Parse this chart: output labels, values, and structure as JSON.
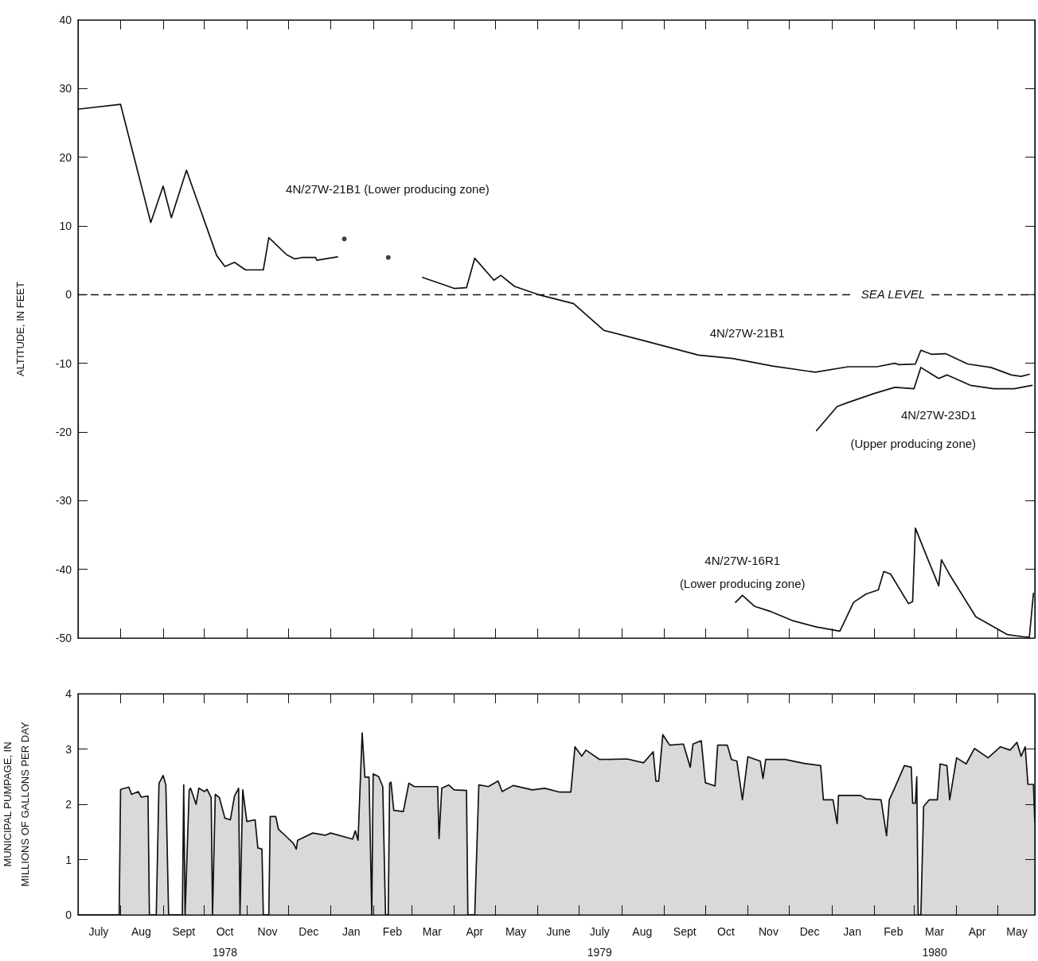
{
  "chart_data": [
    {
      "type": "line",
      "ylabel": "ALTITUDE, IN FEET",
      "ylim": [
        -50,
        40
      ],
      "yticks": [
        -50,
        -40,
        -30,
        -20,
        -10,
        0,
        10,
        20,
        30,
        40
      ],
      "xlim": [
        "1978-07-01",
        "1980-05-28"
      ],
      "tick_labels": "y",
      "xticks": [
        {
          "value": "1978-08-01",
          "label": null
        },
        {
          "value": "1978-09-01",
          "label": null
        },
        {
          "value": "1978-10-01",
          "label": null
        },
        {
          "value": "1978-11-01",
          "label": null
        },
        {
          "value": "1978-12-01",
          "label": null
        },
        {
          "value": "1979-01-01",
          "label": null
        },
        {
          "value": "1979-02-01",
          "label": null
        },
        {
          "value": "1979-03-01",
          "label": null
        },
        {
          "value": "1979-04-01",
          "label": null
        },
        {
          "value": "1979-05-01",
          "label": null
        },
        {
          "value": "1979-06-01",
          "label": null
        },
        {
          "value": "1979-07-01",
          "label": null
        },
        {
          "value": "1979-08-01",
          "label": null
        },
        {
          "value": "1979-09-01",
          "label": null
        },
        {
          "value": "1979-10-01",
          "label": null
        },
        {
          "value": "1979-11-01",
          "label": null
        },
        {
          "value": "1979-12-01",
          "label": null
        },
        {
          "value": "1980-01-01",
          "label": null
        },
        {
          "value": "1980-02-01",
          "label": null
        },
        {
          "value": "1980-03-01",
          "label": null
        },
        {
          "value": "1980-04-01",
          "label": null
        },
        {
          "value": "1980-05-01",
          "label": null
        }
      ],
      "series": [
        {
          "name": "4N/27W-21B1",
          "color": "#111111",
          "x": [
            "1978-07-01",
            "1978-08-01",
            "1978-08-23",
            "1978-09-01",
            "1978-09-07",
            "1978-09-18",
            "1978-10-10",
            "1978-10-16",
            "1978-10-23",
            "1978-10-31",
            "1978-11-13",
            "1978-11-17",
            "1978-11-30",
            "1978-12-06",
            "1978-12-11",
            "1978-12-21",
            "1978-12-22",
            "1979-01-06",
            "1979-02-25",
            "1979-03-09",
            "1979-03-25",
            "1979-04-01",
            "1979-04-10",
            "1979-04-16",
            "1979-04-30",
            "1979-05-05",
            "1979-05-15",
            "1979-06-03",
            "1979-06-27",
            "1979-07-19",
            "1979-08-17",
            "1979-09-26",
            "1979-10-21",
            "1979-11-19",
            "1979-12-20",
            "1980-01-13",
            "1980-02-03",
            "1980-02-16",
            "1980-02-19",
            "1980-03-02",
            "1980-03-06",
            "1980-03-14",
            "1980-03-24",
            "1980-04-09",
            "1980-04-26",
            "1980-05-11",
            "1980-05-18",
            "1980-05-24"
          ],
          "values": [
            27.0,
            27.7,
            10.5,
            15.8,
            11.2,
            18.1,
            5.7,
            4.1,
            4.7,
            3.6,
            3.6,
            8.3,
            5.8,
            5.2,
            5.4,
            5.4,
            5.0,
            5.5,
            null,
            2.5,
            1.4,
            0.9,
            1.0,
            5.3,
            2.1,
            2.8,
            1.2,
            -0.1,
            -1.3,
            -5.2,
            -6.7,
            -8.8,
            -9.3,
            -10.4,
            -11.3,
            -10.5,
            -10.5,
            -10.0,
            -10.2,
            -10.1,
            -8.1,
            -8.7,
            -8.6,
            -10.1,
            -10.6,
            -11.7,
            -11.9,
            -11.6
          ]
        },
        {
          "name": "4N/27W-23D1",
          "color": "#111111",
          "x": [
            "1979-12-21",
            "1980-01-05",
            "1980-01-13",
            "1980-02-01",
            "1980-02-16",
            "1980-03-01",
            "1980-03-06",
            "1980-03-14",
            "1980-03-19",
            "1980-03-25",
            "1980-04-11",
            "1980-04-28",
            "1980-05-13",
            "1980-05-26"
          ],
          "values": [
            -19.8,
            -16.3,
            -15.7,
            -14.4,
            -13.5,
            -13.7,
            -10.6,
            -11.6,
            -12.2,
            -11.7,
            -13.2,
            -13.7,
            -13.7,
            -13.2
          ]
        },
        {
          "name": "4N/27W-16R1",
          "color": "#111111",
          "x": [
            "1979-10-23",
            "1979-10-28",
            "1979-11-06",
            "1979-11-17",
            "1979-12-04",
            "1979-12-21",
            "1980-01-07",
            "1980-01-17",
            "1980-01-26",
            "1980-02-04",
            "1980-02-08",
            "1980-02-13",
            "1980-02-26",
            "1980-02-29",
            "1980-03-02",
            "1980-03-10",
            "1980-03-19",
            "1980-03-21",
            "1980-03-27",
            "1980-04-15",
            "1980-05-08",
            "1980-05-19",
            "1980-05-24",
            "1980-05-27"
          ],
          "values": [
            -44.8,
            -43.8,
            -45.4,
            -46.1,
            -47.5,
            -48.4,
            -49.0,
            -44.8,
            -43.6,
            -43.0,
            -40.3,
            -40.7,
            -45.0,
            -44.7,
            -34.0,
            -38.0,
            -42.4,
            -38.6,
            -40.8,
            -46.9,
            -49.5,
            -49.8,
            -49.9,
            -43.5
          ]
        },
        {
          "type": "scatter",
          "marker": "circle",
          "color": "#111111",
          "x": [
            "1979-01-11",
            "1979-02-12"
          ],
          "values": [
            8.1,
            5.4
          ]
        }
      ],
      "ref_lines": [
        {
          "axis": "y",
          "value": 0,
          "label": "SEA LEVEL",
          "color": "#111111",
          "line_style": "dashed"
        }
      ],
      "annotations": [
        "4N/27W-21B1 (Lower producing zone)",
        "(Upper producing zone)",
        "(Lower producing zone)"
      ]
    },
    {
      "type": "area",
      "ylabel": "MUNICIPAL PUMPAGE, IN\nMILLIONS OF GALLONS PER DAY",
      "ylim": [
        0,
        4
      ],
      "yticks": [
        0,
        1,
        2,
        3,
        4
      ],
      "xlim": [
        "1978-07-01",
        "1980-05-28"
      ],
      "xticks": [
        {
          "value": "1978-07-16",
          "label": "July"
        },
        {
          "value": "1978-08-01",
          "label": null
        },
        {
          "value": "1978-08-16",
          "label": "Aug"
        },
        {
          "value": "1978-09-01",
          "label": null
        },
        {
          "value": "1978-09-16",
          "label": "Sept"
        },
        {
          "value": "1978-10-01",
          "label": null
        },
        {
          "value": "1978-10-16",
          "label": "Oct\n1978"
        },
        {
          "value": "1978-11-01",
          "label": null
        },
        {
          "value": "1978-11-16",
          "label": "Nov"
        },
        {
          "value": "1978-12-01",
          "label": null
        },
        {
          "value": "1978-12-16",
          "label": "Dec"
        },
        {
          "value": "1979-01-01",
          "label": null
        },
        {
          "value": "1979-01-16",
          "label": "Jan"
        },
        {
          "value": "1979-02-01",
          "label": null
        },
        {
          "value": "1979-02-15",
          "label": "Feb"
        },
        {
          "value": "1979-03-01",
          "label": null
        },
        {
          "value": "1979-03-16",
          "label": "Mar"
        },
        {
          "value": "1979-04-01",
          "label": null
        },
        {
          "value": "1979-04-16",
          "label": "Apr"
        },
        {
          "value": "1979-05-01",
          "label": null
        },
        {
          "value": "1979-05-16",
          "label": "May"
        },
        {
          "value": "1979-06-01",
          "label": null
        },
        {
          "value": "1979-06-16",
          "label": "June"
        },
        {
          "value": "1979-07-01",
          "label": null
        },
        {
          "value": "1979-07-16",
          "label": "July\n1979"
        },
        {
          "value": "1979-08-01",
          "label": null
        },
        {
          "value": "1979-08-16",
          "label": "Aug"
        },
        {
          "value": "1979-09-01",
          "label": null
        },
        {
          "value": "1979-09-16",
          "label": "Sept"
        },
        {
          "value": "1979-10-01",
          "label": null
        },
        {
          "value": "1979-10-16",
          "label": "Oct"
        },
        {
          "value": "1979-11-01",
          "label": null
        },
        {
          "value": "1979-11-16",
          "label": "Nov"
        },
        {
          "value": "1979-12-01",
          "label": null
        },
        {
          "value": "1979-12-16",
          "label": "Dec"
        },
        {
          "value": "1980-01-01",
          "label": null
        },
        {
          "value": "1980-01-16",
          "label": "Jan"
        },
        {
          "value": "1980-02-01",
          "label": null
        },
        {
          "value": "1980-02-15",
          "label": "Feb"
        },
        {
          "value": "1980-03-01",
          "label": null
        },
        {
          "value": "1980-03-16",
          "label": "Mar\n1980"
        },
        {
          "value": "1980-04-01",
          "label": null
        },
        {
          "value": "1980-04-16",
          "label": "Apr"
        },
        {
          "value": "1980-05-01",
          "label": null
        },
        {
          "value": "1980-05-15",
          "label": "May"
        }
      ],
      "series": [
        {
          "color": "#111111",
          "x": [
            "1978-07-01",
            "1978-07-31",
            "1978-08-01",
            "1978-08-07",
            "1978-08-09",
            "1978-08-14",
            "1978-08-16",
            "1978-08-21",
            "1978-08-22",
            "1978-08-27",
            "1978-08-29",
            "1978-09-01",
            "1978-09-03",
            "1978-09-05",
            "1978-09-15",
            "1978-09-16",
            "1978-09-17",
            "1978-09-20",
            "1978-09-21",
            "1978-09-25",
            "1978-09-27",
            "1978-10-01",
            "1978-10-03",
            "1978-10-06",
            "1978-10-07",
            "1978-10-09",
            "1978-10-12",
            "1978-10-16",
            "1978-10-20",
            "1978-10-23",
            "1978-10-26",
            "1978-10-27",
            "1978-10-29",
            "1978-11-01",
            "1978-11-07",
            "1978-11-09",
            "1978-11-12",
            "1978-11-13",
            "1978-11-17",
            "1978-11-18",
            "1978-11-22",
            "1978-11-24",
            "1978-11-30",
            "1978-12-05",
            "1978-12-07",
            "1978-12-08",
            "1978-12-19",
            "1978-12-28",
            "1979-01-01",
            "1979-01-17",
            "1979-01-19",
            "1979-01-21",
            "1979-01-24",
            "1979-01-26",
            "1979-01-29",
            "1979-01-31",
            "1979-02-01",
            "1979-02-05",
            "1979-02-08",
            "1979-02-10",
            "1979-02-12",
            "1979-02-13",
            "1979-02-14",
            "1979-02-16",
            "1979-02-23",
            "1979-02-27",
            "1979-03-03",
            "1979-03-20",
            "1979-03-21",
            "1979-03-23",
            "1979-03-28",
            "1979-04-01",
            "1979-04-10",
            "1979-04-11",
            "1979-04-16",
            "1979-04-19",
            "1979-04-26",
            "1979-05-03",
            "1979-05-06",
            "1979-05-14",
            "1979-05-28",
            "1979-06-06",
            "1979-06-17",
            "1979-06-25",
            "1979-06-28",
            "1979-07-03",
            "1979-07-06",
            "1979-07-16",
            "1979-08-05",
            "1979-08-17",
            "1979-08-24",
            "1979-08-26",
            "1979-08-28",
            "1979-08-31",
            "1979-09-05",
            "1979-09-15",
            "1979-09-20",
            "1979-09-22",
            "1979-09-28",
            "1979-10-01",
            "1979-10-08",
            "1979-10-10",
            "1979-10-17",
            "1979-10-20",
            "1979-10-24",
            "1979-10-28",
            "1979-11-01",
            "1979-11-10",
            "1979-11-12",
            "1979-11-14",
            "1979-11-28",
            "1979-12-12",
            "1979-12-24",
            "1979-12-26",
            "1980-01-02",
            "1980-01-05",
            "1980-01-06",
            "1980-01-22",
            "1980-01-26",
            "1980-02-06",
            "1980-02-10",
            "1980-02-12",
            "1980-02-16",
            "1980-02-23",
            "1980-02-28",
            "1980-02-29",
            "1980-03-02",
            "1980-03-03",
            "1980-03-04",
            "1980-03-06",
            "1980-03-08",
            "1980-03-12",
            "1980-03-18",
            "1980-03-20",
            "1980-03-25",
            "1980-03-27",
            "1980-04-01",
            "1980-04-08",
            "1980-04-14",
            "1980-04-24",
            "1980-05-03",
            "1980-05-10",
            "1980-05-15",
            "1980-05-18",
            "1980-05-21",
            "1980-05-23",
            "1980-05-27",
            "1980-05-28"
          ],
          "values": [
            0,
            0,
            2.27,
            2.31,
            2.18,
            2.23,
            2.13,
            2.15,
            0,
            0,
            2.38,
            2.52,
            2.35,
            0,
            0,
            2.35,
            0,
            2.26,
            2.29,
            2.0,
            2.29,
            2.23,
            2.27,
            2.12,
            0,
            2.18,
            2.12,
            1.75,
            1.72,
            2.15,
            2.29,
            0,
            2.26,
            1.69,
            1.72,
            1.21,
            1.19,
            0,
            0,
            1.78,
            1.78,
            1.55,
            1.41,
            1.29,
            1.19,
            1.35,
            1.48,
            1.44,
            1.48,
            1.37,
            1.52,
            1.35,
            3.29,
            2.49,
            2.49,
            0,
            2.55,
            2.5,
            2.32,
            0,
            0,
            2.38,
            2.4,
            1.89,
            1.87,
            2.38,
            2.32,
            2.32,
            1.38,
            2.29,
            2.35,
            2.26,
            2.25,
            0,
            0,
            2.35,
            2.32,
            2.42,
            2.23,
            2.34,
            2.26,
            2.29,
            2.22,
            2.22,
            3.04,
            2.87,
            2.98,
            2.81,
            2.82,
            2.75,
            2.95,
            2.42,
            2.42,
            3.26,
            3.07,
            3.09,
            2.67,
            3.09,
            3.15,
            2.39,
            2.33,
            3.07,
            3.07,
            2.81,
            2.78,
            2.08,
            2.86,
            2.78,
            2.47,
            2.81,
            2.81,
            2.74,
            2.7,
            2.08,
            2.08,
            1.65,
            2.16,
            2.16,
            2.1,
            2.08,
            1.43,
            2.08,
            2.3,
            2.7,
            2.67,
            2.02,
            2.02,
            2.5,
            0,
            0,
            1.96,
            2.08,
            2.08,
            2.73,
            2.7,
            2.08,
            2.84,
            2.73,
            3.01,
            2.84,
            3.04,
            2.98,
            3.12,
            2.87,
            3.04,
            2.36,
            2.36,
            1.68
          ]
        }
      ]
    }
  ]
}
